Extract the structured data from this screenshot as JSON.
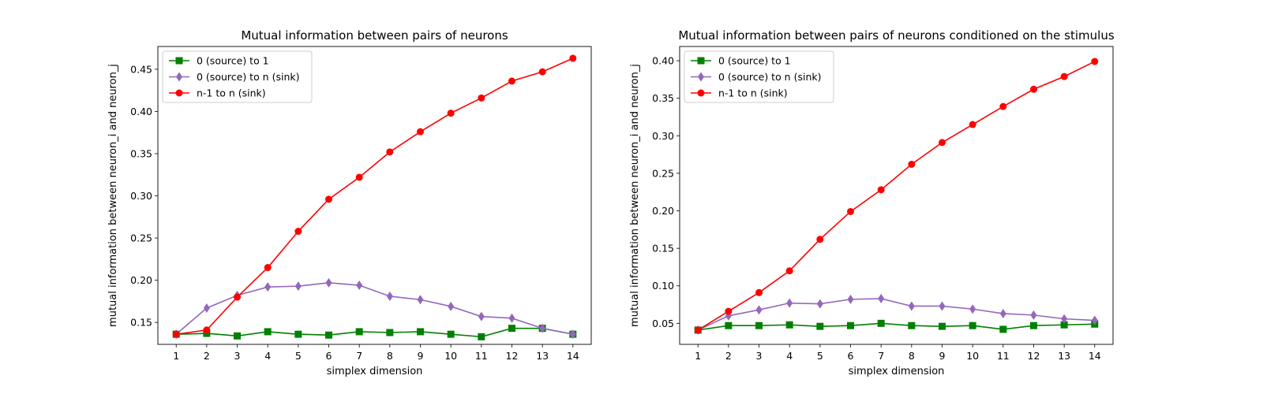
{
  "chart_data": [
    {
      "type": "line",
      "title": "Mutual information between pairs of neurons",
      "xlabel": "simplex dimension",
      "ylabel": "mutual information between neuron_i and neuron_j",
      "x": [
        1,
        2,
        3,
        4,
        5,
        6,
        7,
        8,
        9,
        10,
        11,
        12,
        13,
        14
      ],
      "xticks": [
        "1",
        "2",
        "3",
        "4",
        "5",
        "6",
        "7",
        "8",
        "9",
        "10",
        "11",
        "12",
        "13",
        "14"
      ],
      "xlim": [
        0.4,
        14.6
      ],
      "ylim": [
        0.124,
        0.477
      ],
      "yticks": [
        "0.15",
        "0.20",
        "0.25",
        "0.30",
        "0.35",
        "0.40",
        "0.45"
      ],
      "ytick_values": [
        0.15,
        0.2,
        0.25,
        0.3,
        0.35,
        0.4,
        0.45
      ],
      "legend_position": "upper-left",
      "series": [
        {
          "name": "0 (source) to 1",
          "color": "#008000",
          "marker": "square",
          "values": [
            0.136,
            0.137,
            0.134,
            0.139,
            0.136,
            0.135,
            0.139,
            0.138,
            0.139,
            0.136,
            0.133,
            0.143,
            0.143,
            0.136
          ]
        },
        {
          "name": "0 (source) to n (sink)",
          "color": "#9467bd",
          "marker": "diamond",
          "values": [
            0.136,
            0.167,
            0.182,
            0.192,
            0.193,
            0.197,
            0.194,
            0.181,
            0.177,
            0.169,
            0.157,
            0.155,
            0.143,
            0.136
          ]
        },
        {
          "name": "n-1 to n (sink)",
          "color": "#ff0000",
          "marker": "circle",
          "values": [
            0.136,
            0.141,
            0.18,
            0.215,
            0.258,
            0.296,
            0.322,
            0.352,
            0.376,
            0.398,
            0.416,
            0.436,
            0.447,
            0.463
          ]
        }
      ]
    },
    {
      "type": "line",
      "title": "Mutual information between pairs of neurons conditioned on the stimulus",
      "xlabel": "simplex dimension",
      "ylabel": "mutual information between neuron_i and neuron_j",
      "x": [
        1,
        2,
        3,
        4,
        5,
        6,
        7,
        8,
        9,
        10,
        11,
        12,
        13,
        14
      ],
      "xticks": [
        "1",
        "2",
        "3",
        "4",
        "5",
        "6",
        "7",
        "8",
        "9",
        "10",
        "11",
        "12",
        "13",
        "14"
      ],
      "xlim": [
        0.4,
        14.6
      ],
      "ylim": [
        0.022,
        0.419
      ],
      "yticks": [
        "0.05",
        "0.10",
        "0.15",
        "0.20",
        "0.25",
        "0.30",
        "0.35",
        "0.40"
      ],
      "ytick_values": [
        0.05,
        0.1,
        0.15,
        0.2,
        0.25,
        0.3,
        0.35,
        0.4
      ],
      "legend_position": "upper-left",
      "series": [
        {
          "name": "0 (source) to 1",
          "color": "#008000",
          "marker": "square",
          "values": [
            0.041,
            0.047,
            0.047,
            0.048,
            0.046,
            0.047,
            0.05,
            0.047,
            0.046,
            0.047,
            0.042,
            0.047,
            0.048,
            0.049
          ]
        },
        {
          "name": "0 (source) to n (sink)",
          "color": "#9467bd",
          "marker": "diamond",
          "values": [
            0.041,
            0.06,
            0.068,
            0.077,
            0.076,
            0.082,
            0.083,
            0.073,
            0.073,
            0.069,
            0.063,
            0.061,
            0.056,
            0.054
          ]
        },
        {
          "name": "n-1 to n (sink)",
          "color": "#ff0000",
          "marker": "circle",
          "values": [
            0.041,
            0.066,
            0.091,
            0.12,
            0.162,
            0.199,
            0.228,
            0.262,
            0.291,
            0.315,
            0.339,
            0.362,
            0.379,
            0.399
          ]
        }
      ]
    }
  ]
}
